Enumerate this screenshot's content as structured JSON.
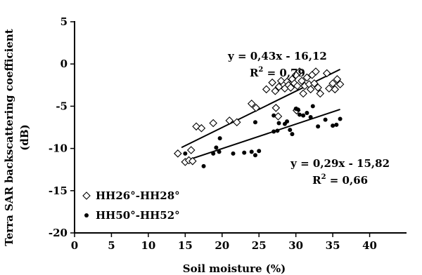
{
  "chart_data": {
    "type": "scatter",
    "xlabel": "Soil moisture (%)",
    "ylabel_line1": "Terra SAR backscattering coefficient",
    "ylabel_line2": "(dB)",
    "xlim": [
      0,
      45
    ],
    "ylim": [
      -20,
      5
    ],
    "xticks": [
      "0",
      "5",
      "10",
      "15",
      "20",
      "25",
      "30",
      "35",
      "40"
    ],
    "yticks": [
      "5",
      "0",
      "-5",
      "-10",
      "-15",
      "-20"
    ],
    "xtick_values": [
      0,
      5,
      10,
      15,
      20,
      25,
      30,
      35,
      40
    ],
    "ytick_values": [
      5,
      0,
      -5,
      -10,
      -15,
      -20
    ],
    "grid": false,
    "legend_position": "bottom-left",
    "series": [
      {
        "name": "HH26°-HH28°",
        "marker": "diamond-open",
        "points": [
          [
            14,
            -10.6
          ],
          [
            15,
            -11.6
          ],
          [
            15.5,
            -11.4
          ],
          [
            15.8,
            -10.2
          ],
          [
            16,
            -11.5
          ],
          [
            16.5,
            -7.4
          ],
          [
            17.2,
            -7.6
          ],
          [
            18.8,
            -7.0
          ],
          [
            21,
            -6.7
          ],
          [
            22,
            -6.9
          ],
          [
            24,
            -4.7
          ],
          [
            24.6,
            -5.2
          ],
          [
            26,
            -3.0
          ],
          [
            26.8,
            -2.2
          ],
          [
            27.2,
            -3.2
          ],
          [
            27.7,
            -2.7
          ],
          [
            28,
            -2.0
          ],
          [
            28.5,
            -2.9
          ],
          [
            28.8,
            -2.1
          ],
          [
            29,
            -2.5
          ],
          [
            29.3,
            -2.8
          ],
          [
            29.5,
            -1.8
          ],
          [
            29.8,
            -2.3
          ],
          [
            30,
            -1.3
          ],
          [
            30.2,
            -2.6
          ],
          [
            30.5,
            -0.9
          ],
          [
            30.8,
            -2.0
          ],
          [
            31,
            -3.5
          ],
          [
            31.2,
            -2.6
          ],
          [
            31.5,
            -1.6
          ],
          [
            31.8,
            -2.4
          ],
          [
            32,
            -3.0
          ],
          [
            32.2,
            -1.3
          ],
          [
            32.5,
            -2.3
          ],
          [
            32.7,
            -0.9
          ],
          [
            33,
            -2.8
          ],
          [
            33.3,
            -3.5
          ],
          [
            34.2,
            -1.1
          ],
          [
            34.5,
            -2.9
          ],
          [
            35,
            -2.3
          ],
          [
            35.3,
            -3.0
          ],
          [
            35.6,
            -1.8
          ],
          [
            36,
            -2.4
          ],
          [
            27.3,
            -5.2
          ],
          [
            27.6,
            -6.2
          ],
          [
            30.1,
            -5.5
          ]
        ]
      },
      {
        "name": "HH50°-HH52°",
        "marker": "dot-filled",
        "points": [
          [
            15,
            -10.6
          ],
          [
            17.5,
            -12.1
          ],
          [
            18.8,
            -10.6
          ],
          [
            19.2,
            -9.9
          ],
          [
            19.6,
            -10.4
          ],
          [
            19.7,
            -8.8
          ],
          [
            21.5,
            -10.6
          ],
          [
            23,
            -10.5
          ],
          [
            24,
            -10.4
          ],
          [
            24.5,
            -10.8
          ],
          [
            25,
            -10.3
          ],
          [
            24.5,
            -6.9
          ],
          [
            27,
            -8.0
          ],
          [
            27.5,
            -7.9
          ],
          [
            27.7,
            -7.0
          ],
          [
            28.5,
            -7.1
          ],
          [
            28.8,
            -6.8
          ],
          [
            29.2,
            -7.8
          ],
          [
            29.5,
            -8.3
          ],
          [
            30,
            -5.3
          ],
          [
            30.5,
            -6.0
          ],
          [
            31,
            -6.1
          ],
          [
            31.5,
            -5.8
          ],
          [
            32,
            -6.3
          ],
          [
            32.3,
            -5.0
          ],
          [
            33,
            -7.4
          ],
          [
            34,
            -6.6
          ],
          [
            35,
            -7.3
          ],
          [
            35.5,
            -7.2
          ],
          [
            36,
            -6.5
          ],
          [
            27,
            -6.1
          ],
          [
            30.3,
            -5.4
          ]
        ]
      }
    ],
    "trendlines": [
      {
        "series": "HH26°-HH28°",
        "x_range": [
          14.5,
          36
        ],
        "slope": 0.43,
        "intercept": -16.12
      },
      {
        "series": "HH50°-HH52°",
        "x_range": [
          14.5,
          36
        ],
        "slope": 0.29,
        "intercept": -15.82
      }
    ],
    "annotations": [
      {
        "equation": "y = 0,43x - 16,12",
        "r2_label": "R",
        "r2_sup": "2",
        "r2_value": " = 0,79",
        "anchor_x": 27.5,
        "anchor_y": 0.5
      },
      {
        "equation": "y = 0,29x - 15,82",
        "r2_label": "R",
        "r2_sup": "2",
        "r2_value": " = 0,66",
        "anchor_x": 36.0,
        "anchor_y": -12.2
      }
    ]
  }
}
